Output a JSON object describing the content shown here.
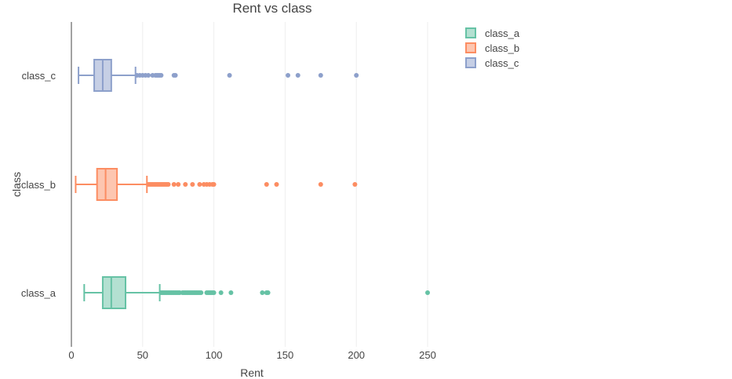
{
  "chart_data": {
    "type": "box",
    "orientation": "horizontal",
    "title": "Rent vs class",
    "xlabel": "Rent",
    "ylabel": "class",
    "xlim": [
      0,
      250
    ],
    "xticks": [
      0,
      50,
      100,
      150,
      200,
      250
    ],
    "grid": true,
    "legend_position": "top-right",
    "categories": [
      "class_a",
      "class_b",
      "class_c"
    ],
    "series": [
      {
        "name": "class_a",
        "color": "#66c2a5",
        "fill": "#b3e0d1",
        "whisker_low": 9,
        "q1": 22,
        "median": 28,
        "q3": 38,
        "whisker_high": 62,
        "outliers": [
          63,
          64,
          65,
          66,
          67,
          68,
          69,
          70,
          71,
          72,
          73,
          74,
          75,
          76,
          78,
          79,
          80,
          81,
          82,
          83,
          84,
          85,
          86,
          87,
          88,
          89,
          90,
          91,
          95,
          96,
          97,
          98,
          99,
          100,
          105,
          112,
          134,
          137,
          138,
          250
        ]
      },
      {
        "name": "class_b",
        "color": "#fc8d62",
        "fill": "#fdc6b0",
        "whisker_low": 3,
        "q1": 18,
        "median": 24,
        "q3": 32,
        "whisker_high": 53,
        "outliers": [
          54,
          55,
          56,
          57,
          58,
          59,
          60,
          61,
          62,
          63,
          64,
          65,
          66,
          67,
          68,
          72,
          75,
          80,
          85,
          90,
          93,
          95,
          97,
          99,
          100,
          137,
          144,
          175,
          199
        ]
      },
      {
        "name": "class_c",
        "color": "#8da0cb",
        "fill": "#c6cfe5",
        "whisker_low": 5,
        "q1": 16,
        "median": 22,
        "q3": 28,
        "whisker_high": 45,
        "outliers": [
          46,
          48,
          50,
          52,
          54,
          57,
          59,
          60,
          61,
          62,
          63,
          72,
          73,
          111,
          152,
          159,
          175,
          200
        ]
      }
    ]
  }
}
